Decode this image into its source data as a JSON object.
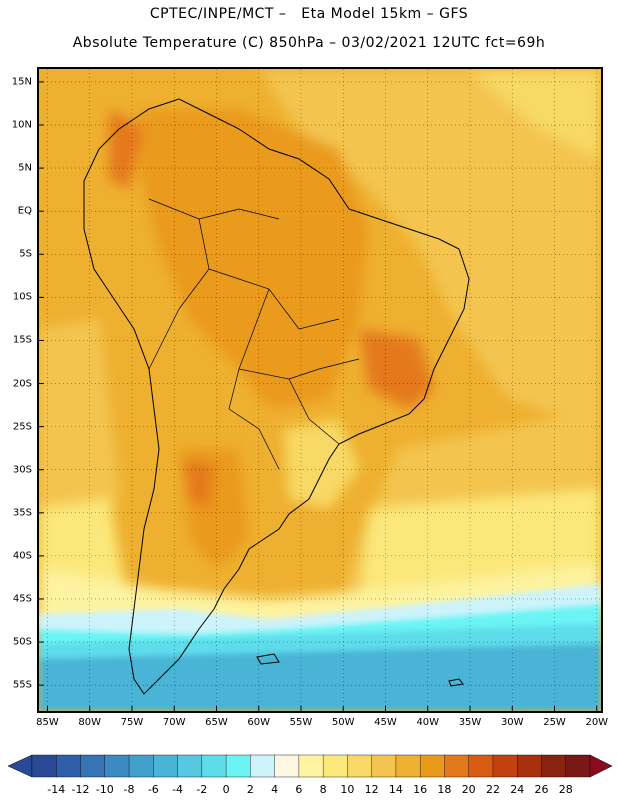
{
  "title_line1": "CPTEC/INPE/MCT –   Eta Model 15km – GFS",
  "title_line2": "Absolute Temperature (C) 850hPa – 03/02/2021 12UTC fct=69h",
  "map": {
    "region": "South America and South Atlantic",
    "variable": "Absolute Temperature (C) 850hPa",
    "lat_labels": [
      "15N",
      "10N",
      "5N",
      "EQ",
      "5S",
      "10S",
      "15S",
      "20S",
      "25S",
      "30S",
      "35S",
      "40S",
      "45S",
      "50S",
      "55S"
    ],
    "lat_values": [
      15,
      10,
      5,
      0,
      -5,
      -10,
      -15,
      -20,
      -25,
      -30,
      -35,
      -40,
      -45,
      -50,
      -55
    ],
    "lat_range": [
      -58,
      16.5
    ],
    "lon_labels": [
      "85W",
      "80W",
      "75W",
      "70W",
      "65W",
      "60W",
      "55W",
      "50W",
      "45W",
      "40W",
      "35W",
      "30W",
      "25W",
      "20W"
    ],
    "lon_values": [
      -85,
      -80,
      -75,
      -70,
      -65,
      -60,
      -55,
      -50,
      -45,
      -40,
      -35,
      -30,
      -25,
      -20
    ],
    "lon_range": [
      -86,
      -19.5
    ],
    "gridlines": "dotted"
  },
  "colorbar": {
    "labels": [
      "-14",
      "-12",
      "-10",
      "-8",
      "-6",
      "-4",
      "-2",
      "0",
      "2",
      "4",
      "6",
      "8",
      "10",
      "12",
      "14",
      "16",
      "18",
      "20",
      "22",
      "24",
      "26",
      "28"
    ],
    "colors": [
      "#2a4a98",
      "#2f5fa8",
      "#3575b5",
      "#3b8bc2",
      "#42a0cc",
      "#4ab4d6",
      "#56c9e0",
      "#5fdcea",
      "#6af4f4",
      "#cdf3fb",
      "#fdf6e2",
      "#fdf3a0",
      "#fbe87a",
      "#f8d965",
      "#f3c550",
      "#eeb030",
      "#ea9a1a",
      "#e4791c",
      "#d95a12",
      "#c2410e",
      "#a8300d",
      "#8a2210",
      "#7a1818"
    ]
  },
  "colors": {
    "warm_base": "#eeb030",
    "hot": "#ea9a1a",
    "very_hot": "#e4791c",
    "mild": "#f3c550",
    "cool_pale": "#fdf3a0",
    "cold_aqua": "#6af4f4",
    "colder": "#4ab4d6"
  }
}
